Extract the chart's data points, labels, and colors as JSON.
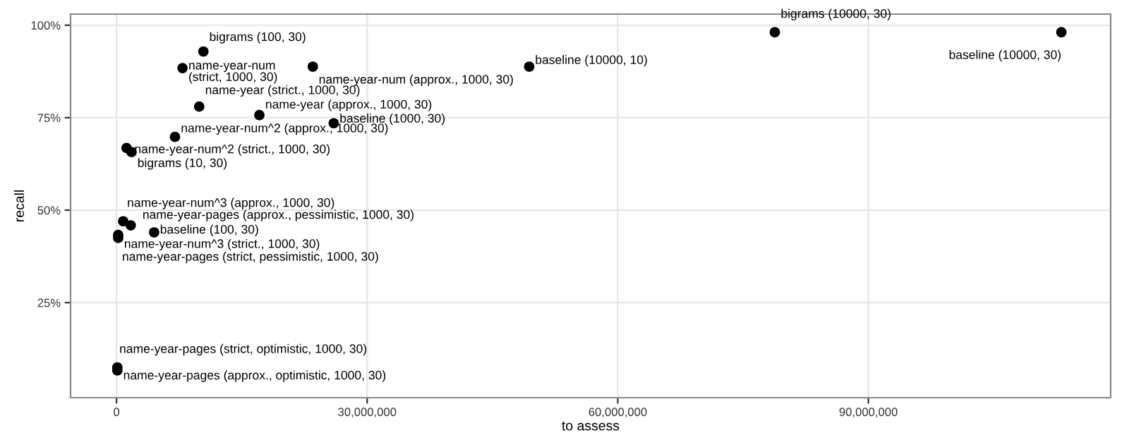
{
  "chart_data": {
    "type": "scatter",
    "xlabel": "to assess",
    "ylabel": "recall",
    "xlim": [
      -5500000,
      119000000
    ],
    "ylim": [
      -0.7,
      103
    ],
    "xticks": [
      0,
      {
        "value": 30000000,
        "label": "30,000,000"
      },
      {
        "value": 60000000,
        "label": "60,000,000"
      },
      {
        "value": 90000000,
        "label": "90,000,000"
      }
    ],
    "yticks": [
      {
        "value": 25,
        "label": "25%"
      },
      {
        "value": 50,
        "label": "50%"
      },
      {
        "value": 75,
        "label": "75%"
      },
      {
        "value": 100,
        "label": "100%"
      }
    ],
    "grid": true,
    "marker": "circle",
    "series": [
      {
        "color": "#000000",
        "x": [
          78800000,
          113100000,
          49400000,
          10400000,
          7900000,
          23500000,
          9900000,
          17100000,
          26000000,
          7000000,
          1200000,
          1800000,
          800000,
          1700000,
          4500000,
          200000,
          200000,
          100000,
          100000
        ],
        "values": [
          98.1,
          98.1,
          88.8,
          92.9,
          88.4,
          88.8,
          78.0,
          75.7,
          73.5,
          69.8,
          66.8,
          65.7,
          47.0,
          45.9,
          44.0,
          43.3,
          42.5,
          7.5,
          6.7
        ],
        "value_labels": [
          "bigrams (10000, 30)",
          "baseline (10000, 30)",
          "baseline (10000, 10)",
          "bigrams (100, 30)",
          "name-year-num (strict, 1000, 30)",
          "name-year-num (approx., 1000, 30)",
          "name-year (strict., 1000, 30)",
          "name-year (approx., 1000, 30)",
          "baseline (1000, 30)",
          "name-year-num^2 (approx., 1000, 30)",
          "name-year-num^2 (strict., 1000, 30)",
          "bigrams (10, 30)",
          "name-year-num^3 (approx., 1000, 30)",
          "name-year-pages (approx., pessimistic, 1000, 30)",
          "baseline (100, 30)",
          "name-year-num^3 (strict., 1000, 30)",
          "name-year-pages (strict, pessimistic, 1000, 30)",
          "name-year-pages (strict, optimistic, 1000, 30)",
          "name-year-pages (approx., optimistic, 1000, 30)"
        ]
      }
    ]
  }
}
